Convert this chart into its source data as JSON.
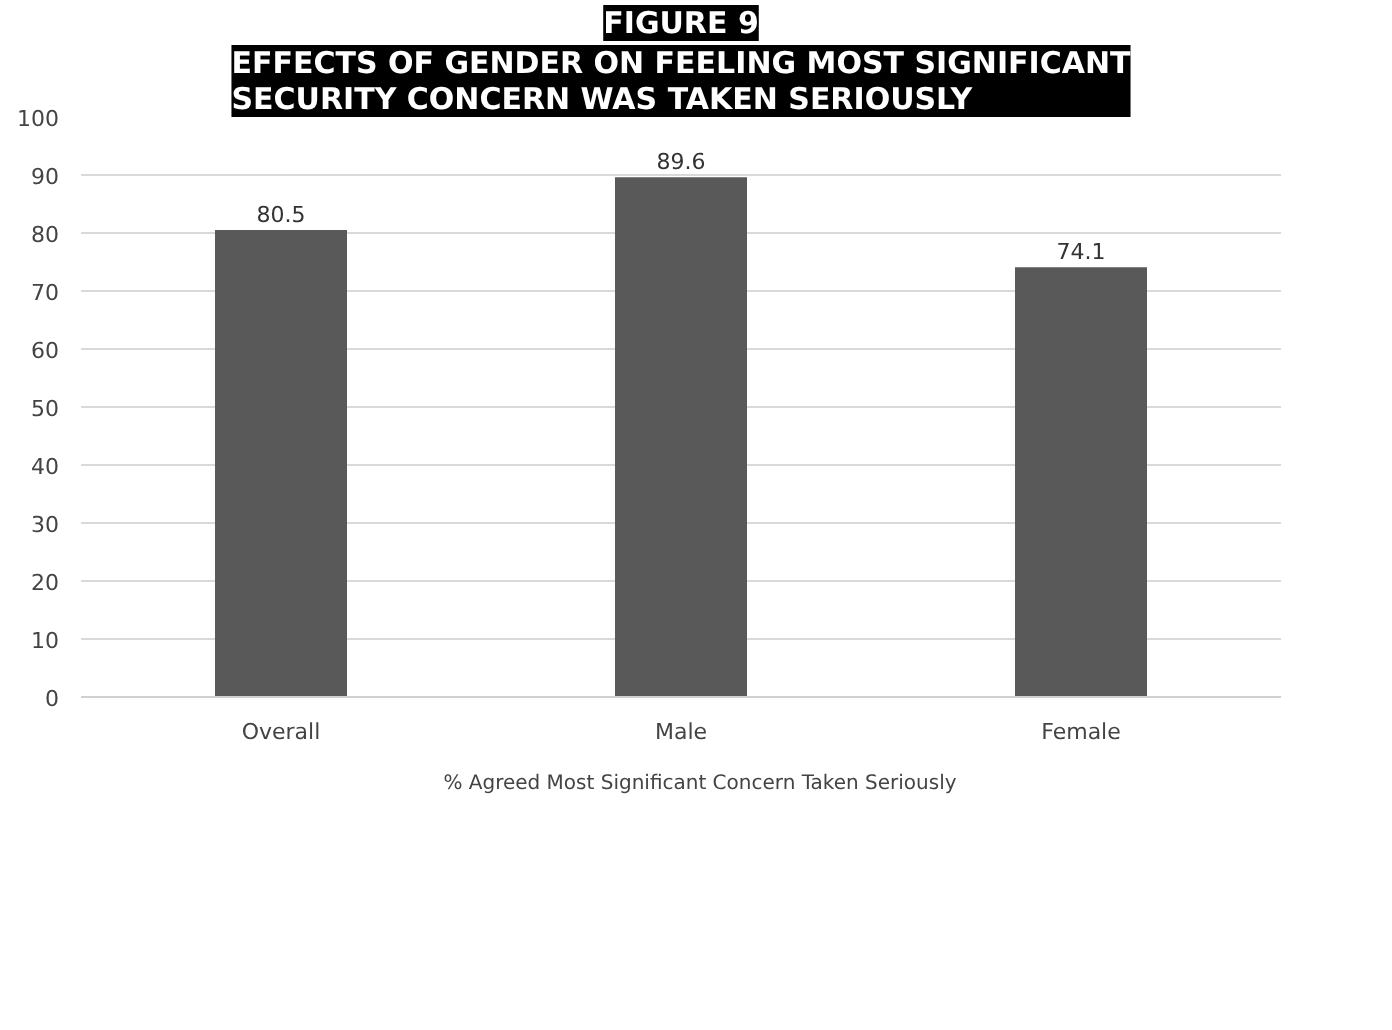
{
  "chart_data": {
    "type": "bar",
    "title": "FIGURE 9",
    "subtitle": "EFFECTS OF GENDER ON FEELING MOST SIGNIFICANT SECURITY CONCERN WAS TAKEN SERIOUSLY",
    "categories": [
      "Overall",
      "Male",
      "Female"
    ],
    "series": [
      {
        "name": "% Agreed Most Significant Concern Taken Seriously",
        "color": "#595959",
        "values": [
          80.5,
          89.6,
          74.1
        ]
      }
    ],
    "ylim": [
      0,
      100
    ],
    "yticks": [
      0,
      10,
      20,
      30,
      40,
      50,
      60,
      70,
      80,
      90,
      100
    ],
    "grid": "y",
    "legend": "bottom",
    "data_labels": true
  }
}
